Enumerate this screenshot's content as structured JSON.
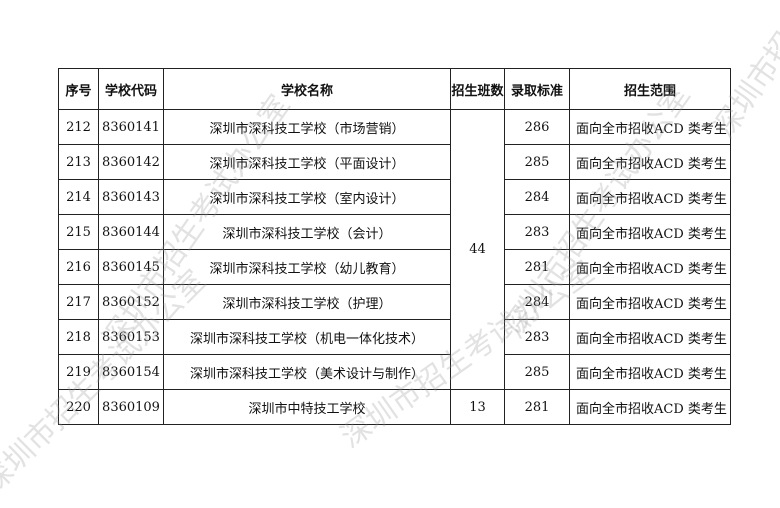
{
  "headers": [
    "序号",
    "学校代码",
    "学校名称",
    "招生班数",
    "录取标准",
    "招生范围"
  ],
  "rows": [
    {
      "no": "212",
      "code": "8360141",
      "name": "深圳市深科技工学校（市场营销）",
      "score": "286",
      "scope": "面向全市招收ACD 类考生"
    },
    {
      "no": "213",
      "code": "8360142",
      "name": "深圳市深科技工学校（平面设计）",
      "score": "285",
      "scope": "面向全市招收ACD 类考生"
    },
    {
      "no": "214",
      "code": "8360143",
      "name": "深圳市深科技工学校（室内设计）",
      "score": "284",
      "scope": "面向全市招收ACD 类考生"
    },
    {
      "no": "215",
      "code": "8360144",
      "name": "深圳市深科技工学校（会计）",
      "score": "283",
      "scope": "面向全市招收ACD 类考生"
    },
    {
      "no": "216",
      "code": "8360145",
      "name": "深圳市深科技工学校（幼儿教育）",
      "score": "281",
      "scope": "面向全市招收ACD 类考生"
    },
    {
      "no": "217",
      "code": "8360152",
      "name": "深圳市深科技工学校（护理）",
      "score": "284",
      "scope": "面向全市招收ACD 类考生"
    },
    {
      "no": "218",
      "code": "8360153",
      "name": "深圳市深科技工学校（机电一体化技术）",
      "score": "283",
      "scope": "面向全市招收ACD 类考生"
    },
    {
      "no": "219",
      "code": "8360154",
      "name": "深圳市深科技工学校（美术设计与制作）",
      "score": "285",
      "scope": "面向全市招收ACD 类考生"
    },
    {
      "no": "220",
      "code": "8360109",
      "name": "深圳市中特技工学校",
      "score": "281",
      "scope": "面向全市招收ACD 类考生"
    }
  ],
  "classes": {
    "group1": "44",
    "group2": "13"
  },
  "watermark": "深圳市招生考试办公室"
}
